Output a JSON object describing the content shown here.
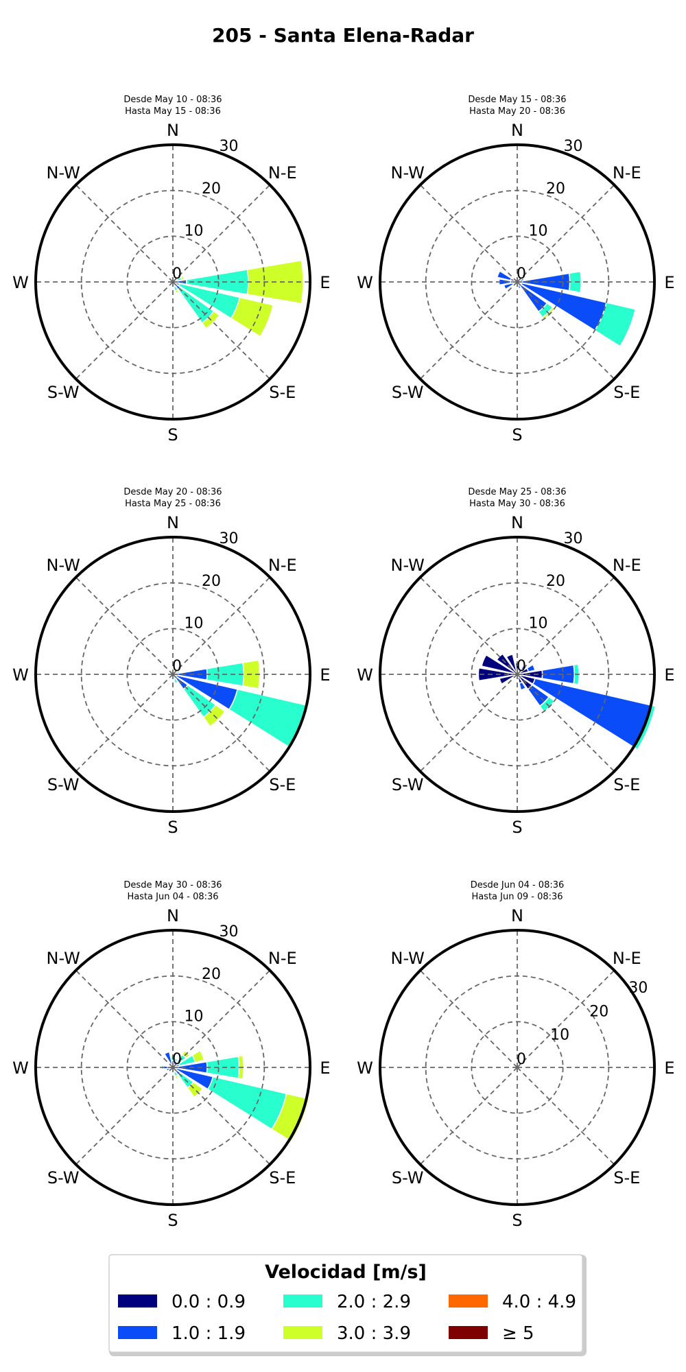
{
  "chart_data": {
    "type": "windrose",
    "title": "205 - Santa Elena-Radar",
    "directions": [
      "N",
      "N-E",
      "E",
      "S-E",
      "S",
      "S-W",
      "W",
      "N-W"
    ],
    "radial_ticks": [
      "0",
      "10",
      "20",
      "30"
    ],
    "radial_max": 30,
    "grid": true,
    "legend": {
      "title": "Velocidad [m/s]",
      "placement": "bottom",
      "bins": [
        {
          "label": "0.0 : 0.9",
          "color": "#00007f"
        },
        {
          "label": "1.0 : 1.9",
          "color": "#0b4cf9"
        },
        {
          "label": "2.0 : 2.9",
          "color": "#29ffce"
        },
        {
          "label": "3.0 : 3.9",
          "color": "#ceff29"
        },
        {
          "label": "4.0 : 4.9",
          "color": "#ff6800"
        },
        {
          "label": "≥  5",
          "color": "#7f0000"
        }
      ]
    },
    "panels": [
      {
        "line1": "Desde May 10 - 08:36",
        "line2": "Hasta May 15 - 08:36",
        "sectors": [
          {
            "angle": 90,
            "values": [
              0,
              3.0,
              13.5,
              12.0
            ]
          },
          {
            "angle": 112.5,
            "values": [
              0,
              1.5,
              13.5,
              7.5
            ]
          },
          {
            "angle": 135,
            "values": [
              0,
              2.0,
              9.0,
              1.5
            ]
          },
          {
            "angle": 157.5,
            "values": [
              0,
              1.0,
              1.0,
              0.5
            ]
          },
          {
            "angle": 67.5,
            "values": [
              0,
              1.0,
              1.0,
              0.5
            ]
          },
          {
            "angle": 45,
            "values": [
              0,
              0.5,
              0.5,
              0
            ]
          }
        ]
      },
      {
        "line1": "Desde May 15 - 08:36",
        "line2": "Hasta May 20 - 08:36",
        "sectors": [
          {
            "angle": 90,
            "values": [
              1.0,
              10.5,
              2.5,
              0
            ]
          },
          {
            "angle": 112.5,
            "values": [
              1.0,
              19.0,
              6.5,
              0
            ]
          },
          {
            "angle": 135,
            "values": [
              1.0,
              7.0,
              1.5,
              0.5
            ]
          },
          {
            "angle": 270,
            "values": [
              1.5,
              2.5,
              0,
              0
            ]
          },
          {
            "angle": 292.5,
            "values": [
              1.5,
              3.0,
              0,
              0
            ]
          },
          {
            "angle": 247.5,
            "values": [
              1.0,
              2.0,
              0,
              0
            ]
          },
          {
            "angle": 67.5,
            "values": [
              0.5,
              1.0,
              0,
              0
            ]
          },
          {
            "angle": 157.5,
            "values": [
              0.5,
              1.0,
              0,
              0
            ]
          }
        ]
      },
      {
        "line1": "Desde May 20 - 08:36",
        "line2": "Hasta May 25 - 08:36",
        "sectors": [
          {
            "angle": 90,
            "values": [
              0,
              7.5,
              8.0,
              3.5
            ]
          },
          {
            "angle": 112.5,
            "values": [
              0,
              14.5,
              15.5,
              0
            ]
          },
          {
            "angle": 135,
            "values": [
              0,
              4.0,
              7.5,
              2.5
            ]
          },
          {
            "angle": 67.5,
            "values": [
              0,
              1.0,
              0.5,
              0
            ]
          },
          {
            "angle": 157.5,
            "values": [
              0,
              1.0,
              1.0,
              0
            ]
          }
        ]
      },
      {
        "line1": "Desde May 25 - 08:36",
        "line2": "Hasta May 30 - 08:36",
        "sectors": [
          {
            "angle": 90,
            "values": [
              5.5,
              7.0,
              1.0,
              0
            ]
          },
          {
            "angle": 112.5,
            "values": [
              4.0,
              26.0,
              1.0,
              0
            ]
          },
          {
            "angle": 135,
            "values": [
              4.0,
              4.5,
              1.5,
              0
            ]
          },
          {
            "angle": 270,
            "values": [
              8.5,
              0,
              0,
              0
            ]
          },
          {
            "angle": 292.5,
            "values": [
              8.0,
              0,
              0,
              0
            ]
          },
          {
            "angle": 315,
            "values": [
              5.5,
              0,
              0,
              0
            ]
          },
          {
            "angle": 337.5,
            "values": [
              4.5,
              0,
              0,
              0
            ]
          },
          {
            "angle": 0,
            "values": [
              2.5,
              0,
              0,
              0
            ]
          },
          {
            "angle": 247.5,
            "values": [
              4.0,
              0,
              0,
              0
            ]
          },
          {
            "angle": 67.5,
            "values": [
              2.5,
              1.5,
              0,
              0
            ]
          },
          {
            "angle": 45,
            "values": [
              1.5,
              1.0,
              0,
              0
            ]
          },
          {
            "angle": 157.5,
            "values": [
              2.0,
              1.5,
              0,
              0
            ]
          }
        ]
      },
      {
        "line1": "Desde May 30 - 08:36",
        "line2": "Hasta Jun 04 - 08:36",
        "sectors": [
          {
            "angle": 90,
            "values": [
              0,
              7.5,
              7.0,
              1.0
            ]
          },
          {
            "angle": 112.5,
            "values": [
              0,
              9.0,
              16.5,
              5.0
            ]
          },
          {
            "angle": 135,
            "values": [
              0,
              2.0,
              3.5,
              2.5
            ]
          },
          {
            "angle": 67.5,
            "values": [
              0,
              1.5,
              3.5,
              2.0
            ]
          },
          {
            "angle": 45,
            "values": [
              0,
              1.5,
              2.0,
              1.0
            ]
          },
          {
            "angle": 157.5,
            "values": [
              0,
              1.0,
              1.0,
              0.5
            ]
          },
          {
            "angle": 0,
            "values": [
              0,
              1.5,
              1.0,
              0
            ]
          },
          {
            "angle": 337.5,
            "values": [
              0,
              3.5,
              0,
              0
            ]
          },
          {
            "angle": 22.5,
            "values": [
              0,
              1.5,
              0.5,
              0
            ]
          },
          {
            "angle": 270,
            "values": [
              1.0,
              1.0,
              0.5,
              0
            ]
          },
          {
            "angle": 247.5,
            "values": [
              0.5,
              1.0,
              0,
              0
            ]
          }
        ]
      },
      {
        "line1": "Desde Jun 04 - 08:36",
        "line2": "Hasta Jun 09 - 08:36",
        "sectors": []
      }
    ]
  }
}
